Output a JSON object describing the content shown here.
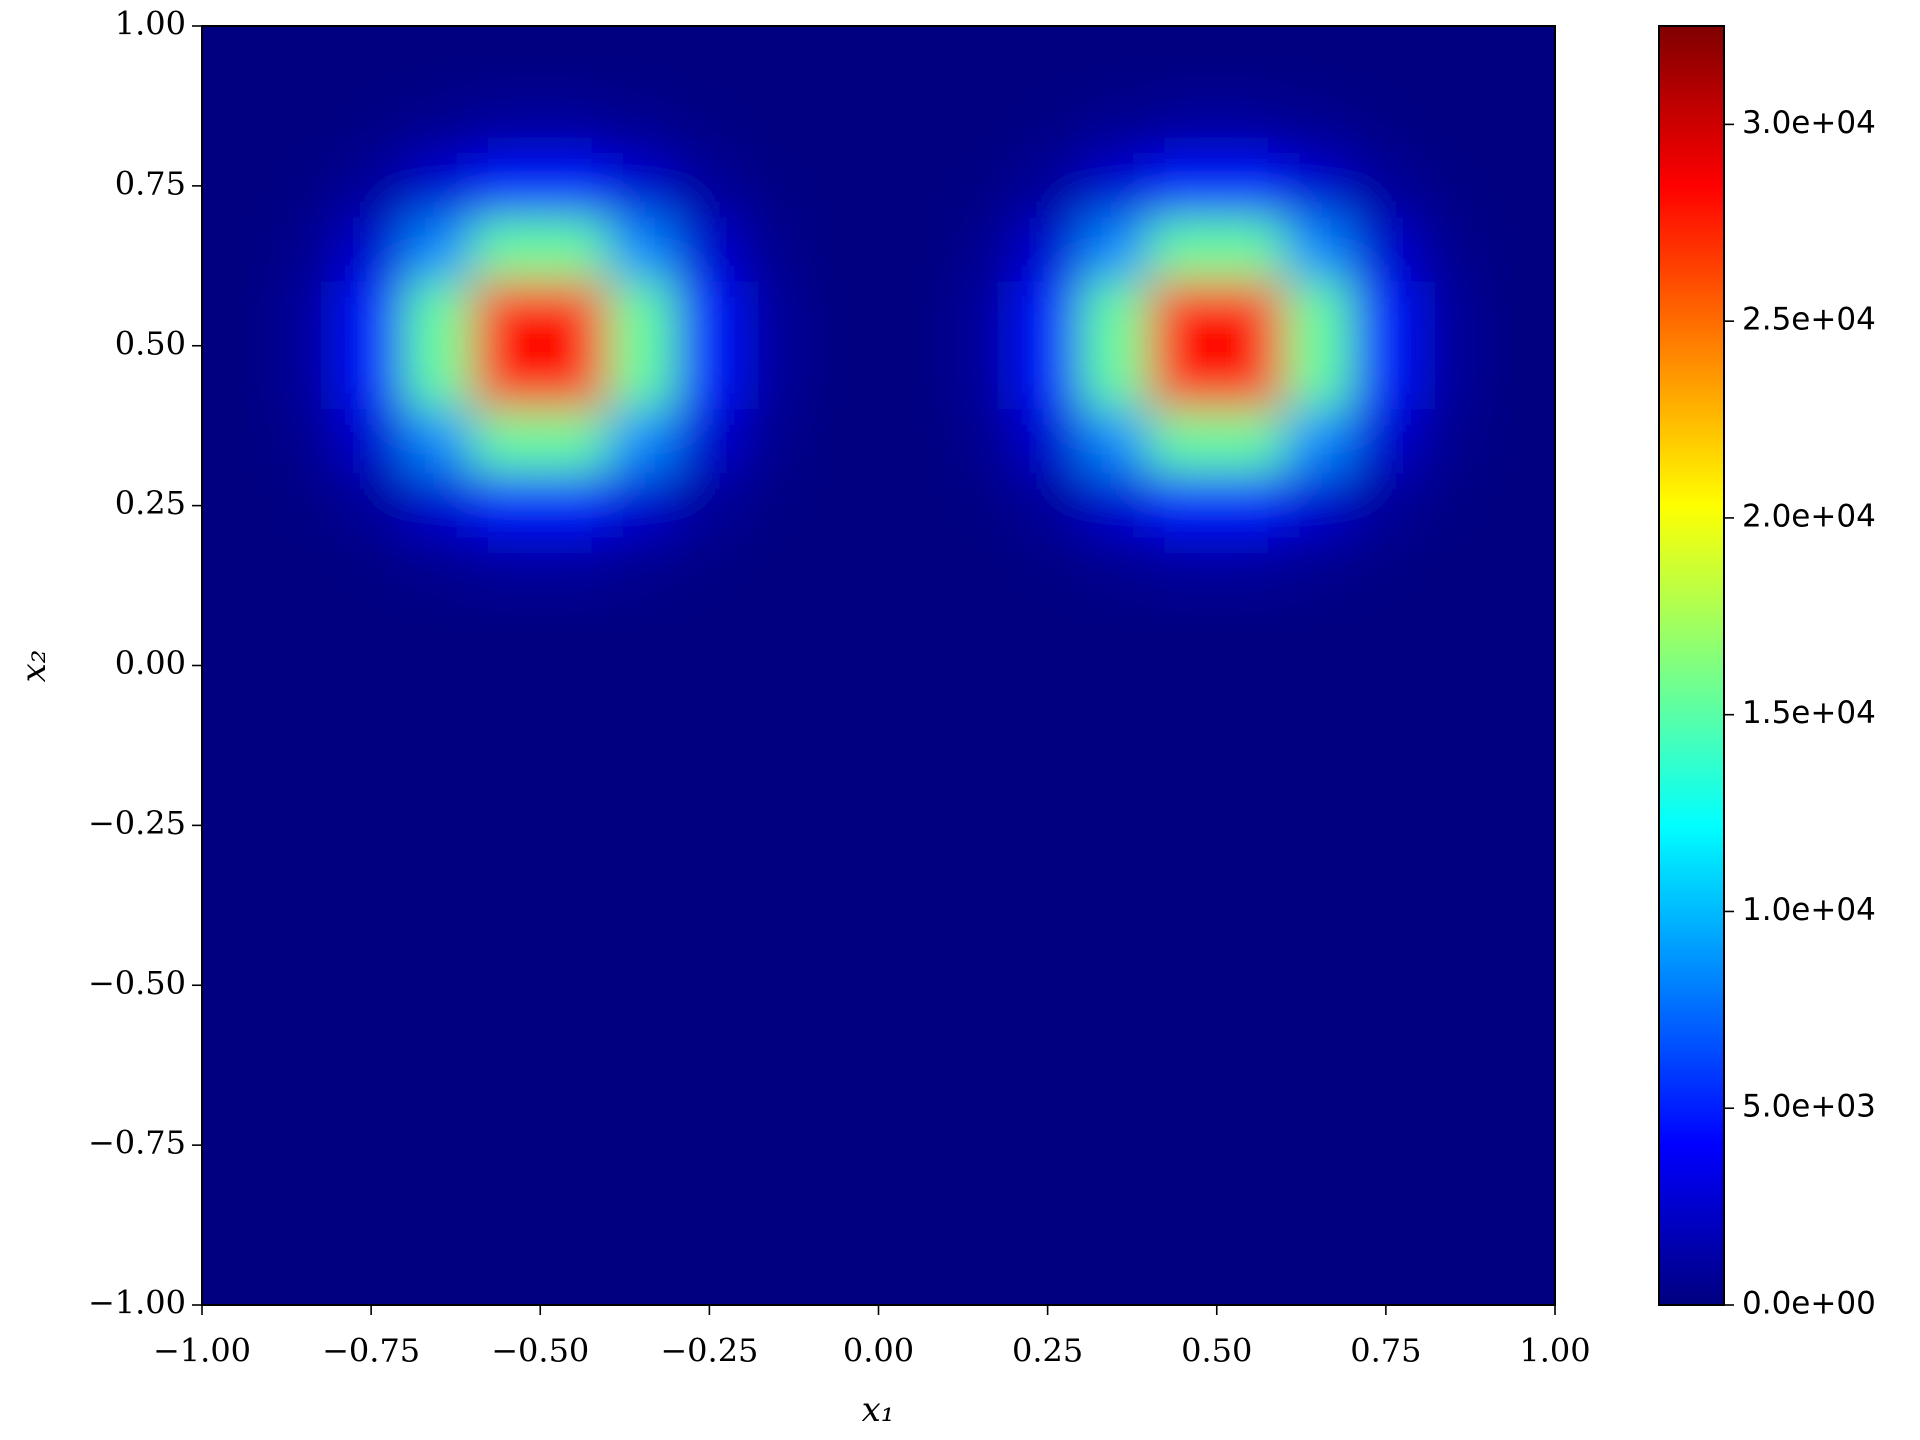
{
  "chart_data": {
    "type": "heatmap",
    "xlabel": "x₁",
    "ylabel": "x₂",
    "xlim": [
      -1,
      1
    ],
    "ylim": [
      -1,
      1
    ],
    "xticks": [
      {
        "value": -1,
        "label": "−1.00"
      },
      {
        "value": -0.75,
        "label": "−0.75"
      },
      {
        "value": -0.5,
        "label": "−0.50"
      },
      {
        "value": -0.25,
        "label": "−0.25"
      },
      {
        "value": 0,
        "label": "0.00"
      },
      {
        "value": 0.25,
        "label": "0.25"
      },
      {
        "value": 0.5,
        "label": "0.50"
      },
      {
        "value": 0.75,
        "label": "0.75"
      },
      {
        "value": 1,
        "label": "1.00"
      }
    ],
    "yticks": [
      {
        "value": -1,
        "label": "−1.00"
      },
      {
        "value": -0.75,
        "label": "−0.75"
      },
      {
        "value": -0.5,
        "label": "−0.50"
      },
      {
        "value": -0.25,
        "label": "−0.25"
      },
      {
        "value": 0,
        "label": "0.00"
      },
      {
        "value": 0.25,
        "label": "0.25"
      },
      {
        "value": 0.5,
        "label": "0.50"
      },
      {
        "value": 0.75,
        "label": "0.75"
      },
      {
        "value": 1,
        "label": "1.00"
      }
    ],
    "colormap": "jet",
    "clim": [
      0,
      32500
    ],
    "colorbar_ticks": [
      {
        "value": 0,
        "label": "0.0e+00"
      },
      {
        "value": 5000,
        "label": "5.0e+03"
      },
      {
        "value": 10000,
        "label": "1.0e+04"
      },
      {
        "value": 15000,
        "label": "1.5e+04"
      },
      {
        "value": 20000,
        "label": "2.0e+04"
      },
      {
        "value": 25000,
        "label": "2.5e+04"
      },
      {
        "value": 30000,
        "label": "3.0e+04"
      }
    ],
    "x": [
      -0.95,
      -0.85,
      -0.75,
      -0.65,
      -0.55,
      -0.45,
      -0.35,
      -0.25,
      -0.15,
      -0.05,
      0.05,
      0.15,
      0.25,
      0.35,
      0.45,
      0.55,
      0.65,
      0.75,
      0.85,
      0.95
    ],
    "y": [
      0.95,
      0.85,
      0.75,
      0.65,
      0.55,
      0.45,
      0.35,
      0.25,
      0.15,
      0.05,
      -0.05,
      -0.15,
      -0.25,
      -0.35,
      -0.45,
      -0.55,
      -0.65,
      -0.75,
      -0.85,
      -0.95
    ],
    "z": [
      [
        0,
        0,
        0,
        0,
        0,
        0,
        0,
        0,
        0,
        0,
        0,
        0,
        0,
        0,
        0,
        0,
        0,
        0,
        0,
        0
      ],
      [
        0,
        20,
        130,
        420,
        770,
        770,
        420,
        130,
        20,
        0,
        0,
        20,
        130,
        420,
        770,
        770,
        420,
        130,
        20,
        0
      ],
      [
        0,
        130,
        770,
        2550,
        4640,
        4640,
        2550,
        770,
        130,
        0,
        0,
        130,
        770,
        2550,
        4640,
        4640,
        2550,
        770,
        130,
        0
      ],
      [
        0,
        420,
        2550,
        8450,
        15380,
        15380,
        8450,
        2550,
        420,
        0,
        0,
        420,
        2550,
        8450,
        15380,
        15380,
        8450,
        2550,
        420,
        0
      ],
      [
        0,
        770,
        4640,
        15380,
        27990,
        27990,
        15380,
        4640,
        770,
        0,
        0,
        770,
        4640,
        15380,
        27990,
        27990,
        15380,
        4640,
        770,
        0
      ],
      [
        0,
        770,
        4640,
        15380,
        27990,
        27990,
        15380,
        4640,
        770,
        0,
        0,
        770,
        4640,
        15380,
        27990,
        27990,
        15380,
        4640,
        770,
        0
      ],
      [
        0,
        420,
        2550,
        8450,
        15380,
        15380,
        8450,
        2550,
        420,
        0,
        0,
        420,
        2550,
        8450,
        15380,
        15380,
        8450,
        2550,
        420,
        0
      ],
      [
        0,
        130,
        770,
        2550,
        4640,
        4640,
        2550,
        770,
        130,
        0,
        0,
        130,
        770,
        2550,
        4640,
        4640,
        2550,
        770,
        130,
        0
      ],
      [
        0,
        20,
        130,
        420,
        770,
        770,
        420,
        130,
        20,
        0,
        0,
        20,
        130,
        420,
        770,
        770,
        420,
        130,
        20,
        0
      ],
      [
        0,
        0,
        0,
        0,
        0,
        0,
        0,
        0,
        0,
        0,
        0,
        0,
        0,
        0,
        0,
        0,
        0,
        0,
        0,
        0
      ],
      [
        0,
        0,
        0,
        0,
        0,
        0,
        0,
        0,
        0,
        0,
        0,
        0,
        0,
        0,
        0,
        0,
        0,
        0,
        0,
        0
      ],
      [
        0,
        0,
        0,
        0,
        0,
        0,
        0,
        0,
        0,
        0,
        0,
        0,
        0,
        0,
        0,
        0,
        0,
        0,
        0,
        0
      ],
      [
        0,
        0,
        0,
        0,
        0,
        0,
        0,
        0,
        0,
        0,
        0,
        0,
        0,
        0,
        0,
        0,
        0,
        0,
        0,
        0
      ],
      [
        0,
        0,
        0,
        0,
        0,
        0,
        0,
        0,
        0,
        0,
        0,
        0,
        0,
        0,
        0,
        0,
        0,
        0,
        0,
        0
      ],
      [
        0,
        0,
        0,
        0,
        0,
        0,
        0,
        0,
        0,
        0,
        0,
        0,
        0,
        0,
        0,
        0,
        0,
        0,
        0,
        0
      ],
      [
        0,
        0,
        0,
        0,
        0,
        0,
        0,
        0,
        0,
        0,
        0,
        0,
        0,
        0,
        0,
        0,
        0,
        0,
        0,
        0
      ],
      [
        0,
        0,
        0,
        0,
        0,
        0,
        0,
        0,
        0,
        0,
        0,
        0,
        0,
        0,
        0,
        0,
        0,
        0,
        0,
        0
      ],
      [
        0,
        0,
        0,
        0,
        0,
        0,
        0,
        0,
        0,
        0,
        0,
        0,
        0,
        0,
        0,
        0,
        0,
        0,
        0,
        0
      ],
      [
        0,
        0,
        0,
        0,
        0,
        0,
        0,
        0,
        0,
        0,
        0,
        0,
        0,
        0,
        0,
        0,
        0,
        0,
        0,
        0
      ],
      [
        0,
        0,
        0,
        0,
        0,
        0,
        0,
        0,
        0,
        0,
        0,
        0,
        0,
        0,
        0,
        0,
        0,
        0,
        0,
        0
      ]
    ]
  }
}
